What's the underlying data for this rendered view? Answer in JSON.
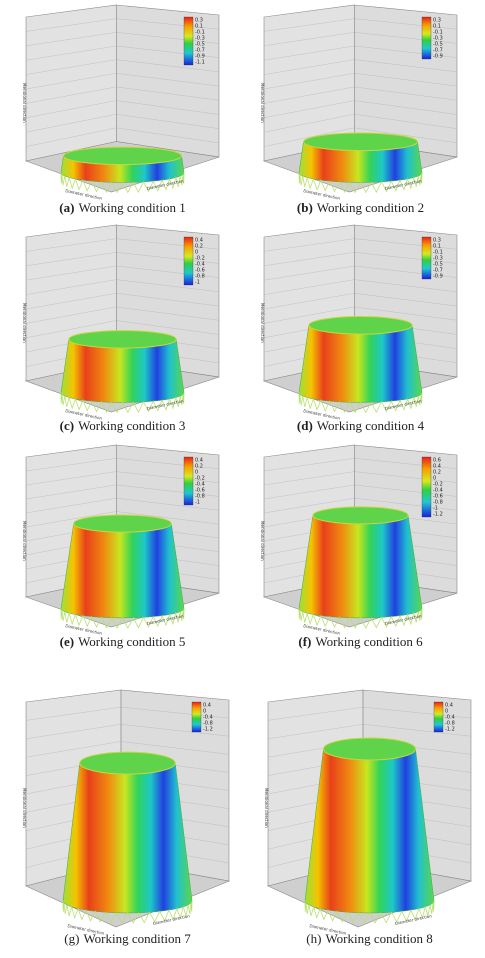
{
  "figure": {
    "axis_labels": {
      "vertical": "Meridional direction",
      "horizontal": "Diameter direction"
    },
    "panels": [
      {
        "label": "(a)",
        "caption": "Working condition 1",
        "legend": [
          "0.3",
          "0.1",
          "-0.1",
          "-0.3",
          "-0.5",
          "-0.7",
          "-0.9",
          "-1.1"
        ]
      },
      {
        "label": "(b)",
        "caption": "Working condition 2",
        "legend": [
          "0.3",
          "0.1",
          "-0.1",
          "-0.3",
          "-0.5",
          "-0.7",
          "-0.9"
        ]
      },
      {
        "label": "(c)",
        "caption": "Working condition 3",
        "legend": [
          "0.4",
          "0.2",
          "0",
          "-0.2",
          "-0.4",
          "-0.6",
          "-0.8",
          "-1"
        ]
      },
      {
        "label": "(d)",
        "caption": "Working condition 4",
        "legend": [
          "0.3",
          "0.1",
          "-0.1",
          "-0.3",
          "-0.5",
          "-0.7",
          "-0.9"
        ]
      },
      {
        "label": "(e)",
        "caption": "Working condition 5",
        "legend": [
          "0.4",
          "0.2",
          "0",
          "-0.2",
          "-0.4",
          "-0.6",
          "-0.8",
          "-1"
        ]
      },
      {
        "label": "(f)",
        "caption": "Working condition 6",
        "legend": [
          "0.6",
          "0.4",
          "0.2",
          "0",
          "-0.2",
          "-0.4",
          "-0.6",
          "-0.8",
          "-1",
          "-1.2"
        ]
      },
      {
        "label": "(g)",
        "caption": "Working condition 7",
        "legend": [
          "0.4",
          "0",
          "-0.4",
          "-0.8",
          "-1.2"
        ]
      },
      {
        "label": "(h)",
        "caption": "Working condition 8",
        "legend": [
          "0.4",
          "0",
          "-0.4",
          "-0.8",
          "-1.2"
        ]
      }
    ]
  }
}
